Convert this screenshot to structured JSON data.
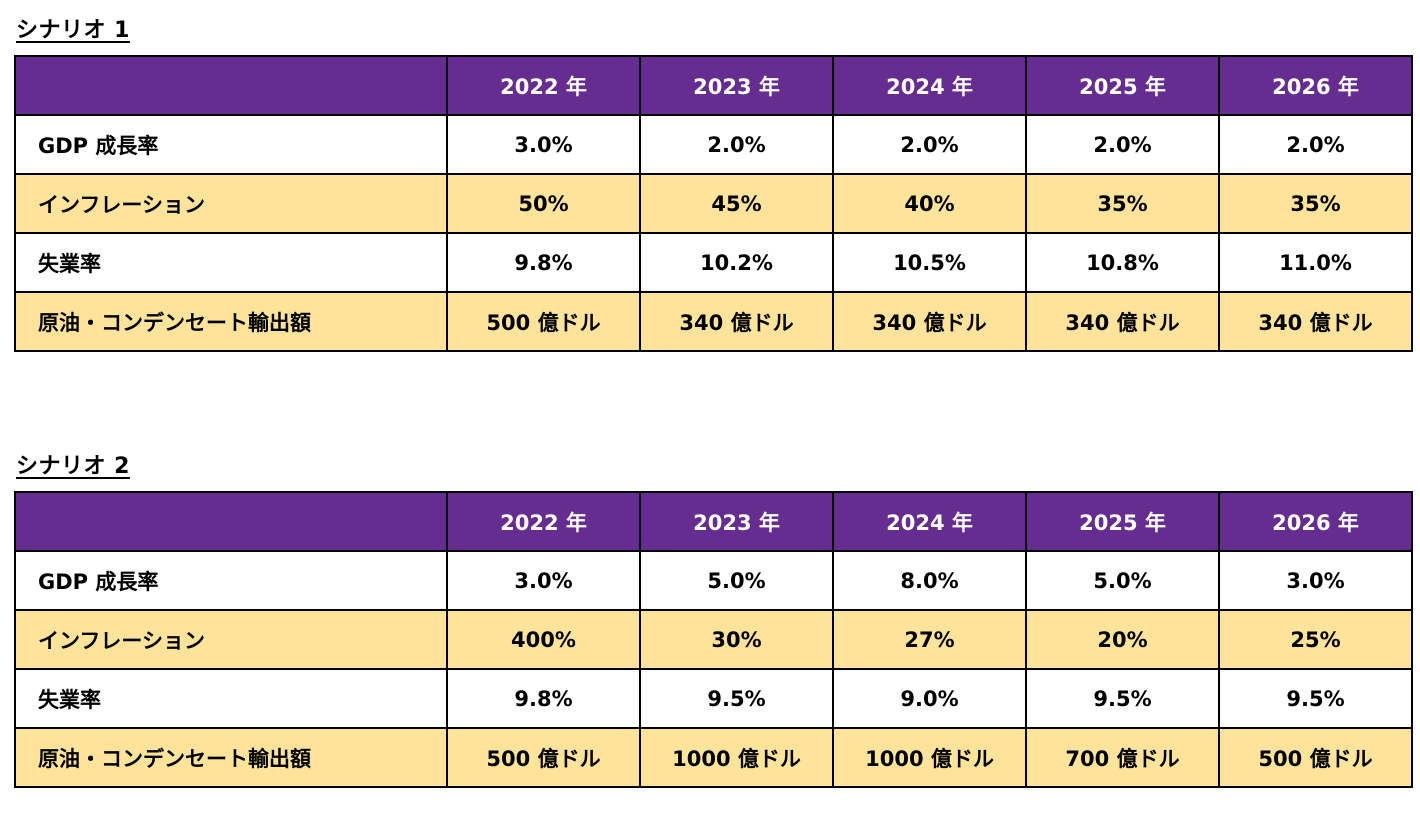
{
  "scenarios": [
    {
      "title": "シナリオ 1",
      "years": [
        "2022 年",
        "2023 年",
        "2024 年",
        "2025 年",
        "2026 年"
      ],
      "rows": [
        {
          "label": "GDP 成長率",
          "values": [
            "3.0%",
            "2.0%",
            "2.0%",
            "2.0%",
            "2.0%"
          ]
        },
        {
          "label": "インフレーション",
          "values": [
            "50%",
            "45%",
            "40%",
            "35%",
            "35%"
          ]
        },
        {
          "label": "失業率",
          "values": [
            "9.8%",
            "10.2%",
            "10.5%",
            "10.8%",
            "11.0%"
          ]
        },
        {
          "label": "原油・コンデンセート輸出額",
          "values": [
            "500 億ドル",
            "340 億ドル",
            "340 億ドル",
            "340 億ドル",
            "340 億ドル"
          ]
        }
      ]
    },
    {
      "title": "シナリオ 2",
      "years": [
        "2022 年",
        "2023 年",
        "2024 年",
        "2025 年",
        "2026 年"
      ],
      "rows": [
        {
          "label": "GDP 成長率",
          "values": [
            "3.0%",
            "5.0%",
            "8.0%",
            "5.0%",
            "3.0%"
          ]
        },
        {
          "label": "インフレーション",
          "values": [
            "400%",
            "30%",
            "27%",
            "20%",
            "25%"
          ]
        },
        {
          "label": "失業率",
          "values": [
            "9.8%",
            "9.5%",
            "9.0%",
            "9.5%",
            "9.5%"
          ]
        },
        {
          "label": "原油・コンデンセート輸出額",
          "values": [
            "500 億ドル",
            "1000 億ドル",
            "1000 億ドル",
            "700 億ドル",
            "500 億ドル"
          ]
        }
      ]
    }
  ],
  "colors": {
    "header_bg": "#662d91",
    "header_text": "#ffffff",
    "band_bg": "#fde49a",
    "plain_bg": "#ffffff"
  }
}
